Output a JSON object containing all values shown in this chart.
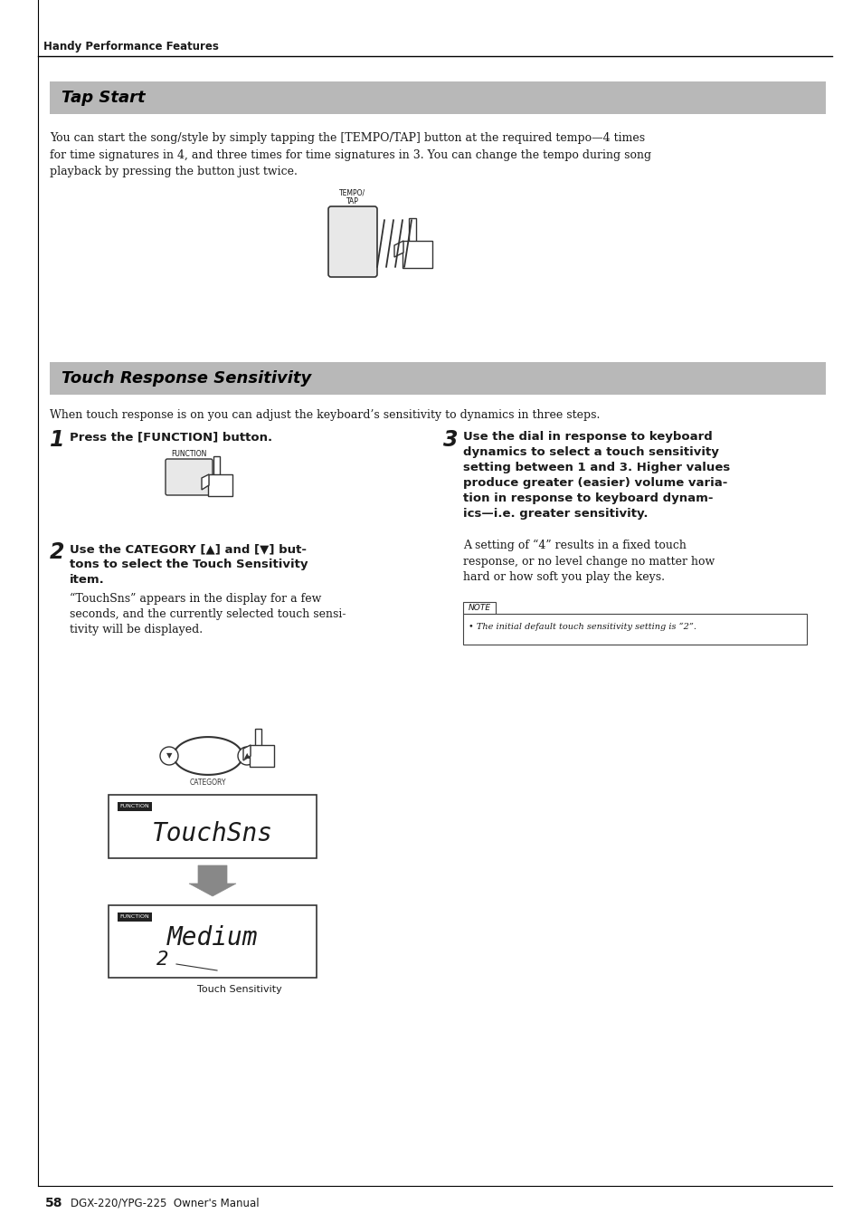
{
  "page_bg": "#ffffff",
  "header_text": "Handy Performance Features",
  "section1_title": "Tap Start",
  "section1_bg": "#b8b8b8",
  "section1_body": "You can start the song/style by simply tapping the [TEMPO/TAP] button at the required tempo—4 times\nfor time signatures in 4, and three times for time signatures in 3. You can change the tempo during song\nplayback by pressing the button just twice.",
  "section2_title": "Touch Response Sensitivity",
  "section2_bg": "#b8b8b8",
  "section2_body": "When touch response is on you can adjust the keyboard’s sensitivity to dynamics in three steps.",
  "step1_bold": "Press the [FUNCTION] button.",
  "step2_bold": "Use the CATEGORY [▲] and [▼] but-\ntons to select the Touch Sensitivity\nitem.",
  "step2_body": "“TouchSns” appears in the display for a few\nseconds, and the currently selected touch sensi-\ntivity will be displayed.",
  "step3_bold": "Use the dial in response to keyboard\ndynamics to select a touch sensitivity\nsetting between 1 and 3. Higher values\nproduce greater (easier) volume varia-\ntion in response to keyboard dynam-\nics—i.e. greater sensitivity.",
  "step3_body": "A setting of “4” results in a fixed touch\nresponse, or no level change no matter how\nhard or how soft you play the keys.",
  "note_title": "NOTE",
  "note_body": "• The initial default touch sensitivity setting is “2”.",
  "display_text1": "TouchSns",
  "display_text2": "Medium",
  "display_text3": "2",
  "display_label": "Touch Sensitivity",
  "display_sub": "FUNCTION",
  "footer_page": "58",
  "footer_text": "DGX-220/YPG-225  Owner's Manual",
  "text_color": "#1a1a1a",
  "gray_arrow": "#888888"
}
